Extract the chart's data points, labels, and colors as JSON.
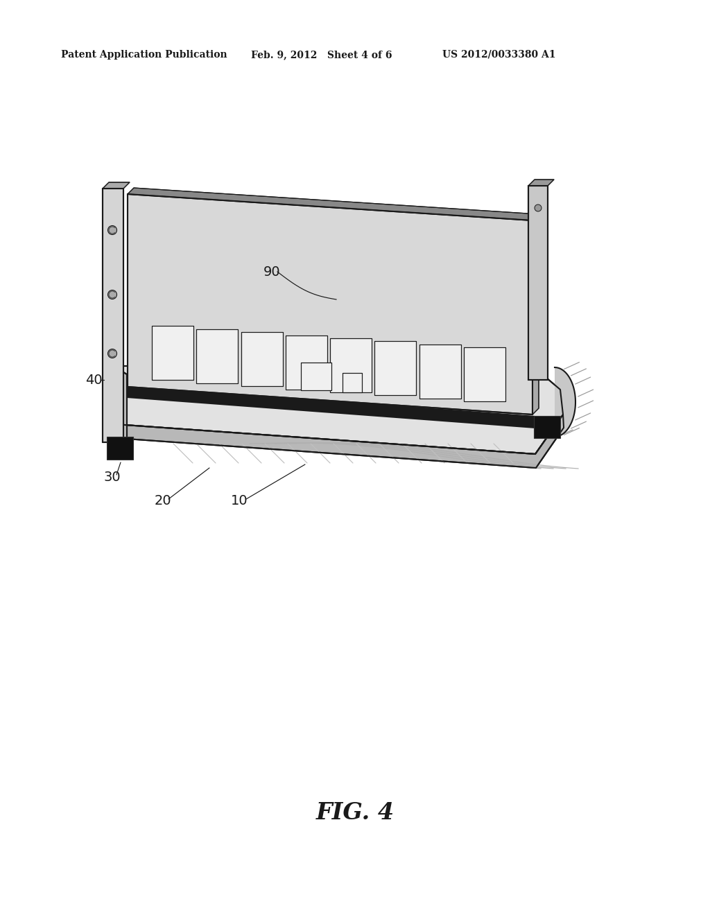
{
  "bg_color": "#ffffff",
  "line_color": "#1a1a1a",
  "header_left": "Patent Application Publication",
  "header_mid": "Feb. 9, 2012   Sheet 4 of 6",
  "header_right": "US 2012/0033380 A1",
  "fig_label": "FIG. 4",
  "figsize": [
    10.24,
    13.2
  ],
  "dpi": 100,
  "gray_light": "#e0e0e0",
  "gray_mid": "#aaaaaa",
  "gray_dark": "#555555",
  "black": "#111111",
  "chip_fill": "#f0f0f0",
  "tray_top_fill": "#e2e2e2",
  "tray_bot_fill": "#b8b8b8",
  "bracket_fill": "#d5d5d5"
}
